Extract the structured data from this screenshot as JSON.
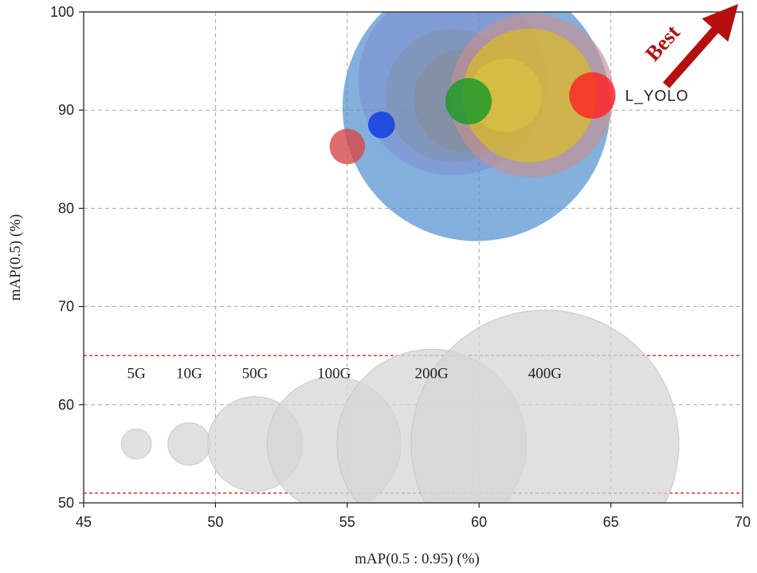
{
  "chart_data": {
    "type": "scatter",
    "subtype": "bubble",
    "xlabel": "mAP(0.5 : 0.95) (%)",
    "ylabel": "mAP(0.5) (%)",
    "xlim": [
      45,
      70
    ],
    "ylim": [
      50,
      100
    ],
    "xticks": [
      "45",
      "50",
      "55",
      "60",
      "65",
      "70"
    ],
    "yticks": [
      "50",
      "60",
      "70",
      "80",
      "90",
      "100"
    ],
    "grid": true,
    "annotation": "Best",
    "points": [
      {
        "name": "",
        "x": 59.0,
        "y": 93.0,
        "flops": 200,
        "color": "#e884cc",
        "opacity": 0.5
      },
      {
        "name": "",
        "x": 59.9,
        "y": 90.3,
        "flops": 400,
        "color": "#4e8fcf",
        "opacity": 0.7
      },
      {
        "name": "",
        "x": 59.0,
        "y": 91.5,
        "flops": 100,
        "color": "#7f8fa8",
        "opacity": 0.55
      },
      {
        "name": "",
        "x": 59.5,
        "y": 91.0,
        "flops": 60,
        "color": "#8a8a8a",
        "opacity": 0.45
      },
      {
        "name": "",
        "x": 62.0,
        "y": 91.5,
        "flops": 150,
        "color": "#c79090",
        "opacity": 0.65
      },
      {
        "name": "",
        "x": 61.9,
        "y": 91.5,
        "flops": 100,
        "color": "#d8ba2c",
        "opacity": 0.75
      },
      {
        "name": "",
        "x": 61.0,
        "y": 91.5,
        "flops": 30,
        "color": "#dcc440",
        "opacity": 0.6
      },
      {
        "name": "",
        "x": 59.6,
        "y": 90.9,
        "flops": 12,
        "color": "#1f9a2c",
        "opacity": 0.85
      },
      {
        "name": "",
        "x": 55.0,
        "y": 86.3,
        "flops": 7,
        "color": "#d64848",
        "opacity": 0.8
      },
      {
        "name": "",
        "x": 56.3,
        "y": 88.5,
        "flops": 4,
        "color": "#1a49e0",
        "opacity": 0.95
      },
      {
        "name": "L_YOLO",
        "x": 64.3,
        "y": 91.5,
        "flops": 12,
        "color": "#ff2020",
        "opacity": 0.8
      }
    ],
    "size_legend": [
      {
        "label": "5G",
        "value": 5,
        "x": 47.0
      },
      {
        "label": "10G",
        "value": 10,
        "x": 49.0
      },
      {
        "label": "50G",
        "value": 50,
        "x": 51.5
      },
      {
        "label": "100G",
        "value": 100,
        "x": 54.5
      },
      {
        "label": "200G",
        "value": 200,
        "x": 58.2
      },
      {
        "label": "400G",
        "value": 400,
        "x": 62.5
      }
    ],
    "size_legend_y": 56,
    "size_legend_label_y": 62.7,
    "legend_band": [
      51,
      65
    ]
  }
}
